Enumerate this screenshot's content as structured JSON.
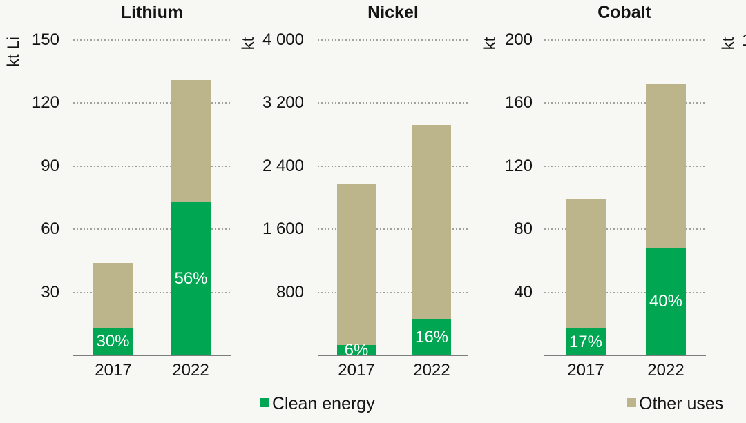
{
  "page": {
    "background": "#f7f7f4",
    "description": "Stacked bar charts of mineral demand by end use, 2017 vs 2022"
  },
  "colors": {
    "clean_energy": "#00a651",
    "other_uses": "#bcb48b",
    "gridline": "#a2a09b",
    "axis_line": "#7d7d7d",
    "text": "#141414",
    "bar_label_text": "#ffffff"
  },
  "legend": {
    "items": [
      {
        "label": "Clean energy",
        "color": "#00a651"
      },
      {
        "label": "Other uses",
        "color": "#bcb48b"
      }
    ]
  },
  "chart_data": [
    {
      "type": "bar",
      "stacked": true,
      "title": "Lithium",
      "ylabel": "kt Li",
      "ylim": [
        0,
        150
      ],
      "yticks": [
        30,
        60,
        90,
        120,
        150
      ],
      "ytick_labels": [
        "30",
        "60",
        "90",
        "120",
        "150"
      ],
      "grid": "dotted-horizontal",
      "categories": [
        "2017",
        "2022"
      ],
      "series": [
        {
          "name": "Clean energy",
          "values": [
            13,
            73
          ]
        },
        {
          "name": "Other uses",
          "values": [
            31,
            58
          ]
        }
      ],
      "totals": [
        44,
        131
      ],
      "bar_labels": [
        "30%",
        "56%"
      ]
    },
    {
      "type": "bar",
      "stacked": true,
      "title": "Nickel",
      "ylabel": "kt",
      "ylim": [
        0,
        4000
      ],
      "yticks": [
        800,
        1600,
        2400,
        3200,
        4000
      ],
      "ytick_labels": [
        "800",
        "1 600",
        "2 400",
        "3 200",
        "4 000"
      ],
      "grid": "dotted-horizontal",
      "categories": [
        "2017",
        "2022"
      ],
      "series": [
        {
          "name": "Clean energy",
          "values": [
            130,
            455
          ]
        },
        {
          "name": "Other uses",
          "values": [
            2040,
            2470
          ]
        }
      ],
      "totals": [
        2170,
        2925
      ],
      "bar_labels": [
        "6%",
        "16%"
      ]
    },
    {
      "type": "bar",
      "stacked": true,
      "title": "Cobalt",
      "ylabel": "kt",
      "ylim": [
        0,
        200
      ],
      "yticks": [
        40,
        80,
        120,
        160,
        200
      ],
      "ytick_labels": [
        "40",
        "80",
        "120",
        "160",
        "200"
      ],
      "grid": "dotted-horizontal",
      "categories": [
        "2017",
        "2022"
      ],
      "series": [
        {
          "name": "Clean energy",
          "values": [
            17,
            68
          ]
        },
        {
          "name": "Other uses",
          "values": [
            82,
            104
          ]
        }
      ],
      "totals": [
        99,
        172
      ],
      "bar_labels": [
        "17%",
        "40%"
      ]
    }
  ],
  "partial_panel": {
    "ylabel": "kt",
    "partial_tick": "1"
  }
}
